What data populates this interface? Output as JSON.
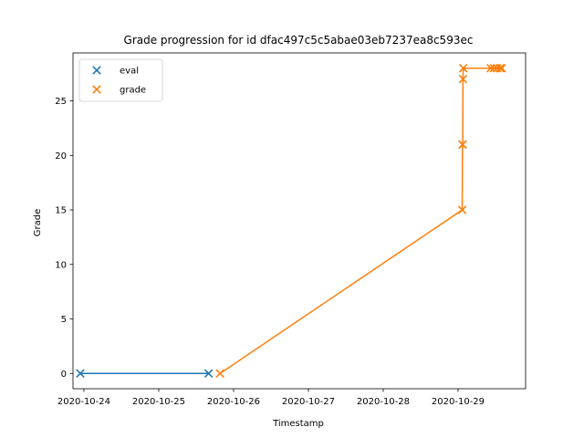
{
  "chart_data": {
    "type": "line",
    "title": "Grade progression for id dfac497c5c5abae03eb7237ea8c593ec",
    "xlabel": "Timestamp",
    "ylabel": "Grade",
    "x_axis_type": "date",
    "xlim": [
      "2020-10-23T20:30:00",
      "2020-10-29T21:40:00"
    ],
    "ylim": [
      -1.4,
      29.4
    ],
    "x_ticks": [
      {
        "value": "2020-10-24T00:00:00",
        "label": "2020-10-24"
      },
      {
        "value": "2020-10-25T00:00:00",
        "label": "2020-10-25"
      },
      {
        "value": "2020-10-26T00:00:00",
        "label": "2020-10-26"
      },
      {
        "value": "2020-10-27T00:00:00",
        "label": "2020-10-27"
      },
      {
        "value": "2020-10-28T00:00:00",
        "label": "2020-10-28"
      },
      {
        "value": "2020-10-29T00:00:00",
        "label": "2020-10-29"
      }
    ],
    "y_ticks": [
      0,
      5,
      10,
      15,
      20,
      25
    ],
    "grid": false,
    "legend_position": "top-left",
    "series": [
      {
        "name": "eval",
        "color": "#1f77b4",
        "marker": "x",
        "points": [
          {
            "x": "2020-10-23T22:50:00",
            "y": 0
          },
          {
            "x": "2020-10-25T16:00:00",
            "y": 0
          }
        ]
      },
      {
        "name": "grade",
        "color": "#ff7f0e",
        "marker": "x",
        "points": [
          {
            "x": "2020-10-25T19:40:00",
            "y": 0
          },
          {
            "x": "2020-10-29T01:20:00",
            "y": 15
          },
          {
            "x": "2020-10-29T01:25:00",
            "y": 21
          },
          {
            "x": "2020-10-29T01:30:00",
            "y": 21
          },
          {
            "x": "2020-10-29T01:35:00",
            "y": 27
          },
          {
            "x": "2020-10-29T01:40:00",
            "y": 28
          },
          {
            "x": "2020-10-29T10:30:00",
            "y": 28
          },
          {
            "x": "2020-10-29T11:30:00",
            "y": 28
          },
          {
            "x": "2020-10-29T12:30:00",
            "y": 28
          },
          {
            "x": "2020-10-29T13:30:00",
            "y": 28
          },
          {
            "x": "2020-10-29T14:00:00",
            "y": 28
          }
        ]
      }
    ]
  }
}
